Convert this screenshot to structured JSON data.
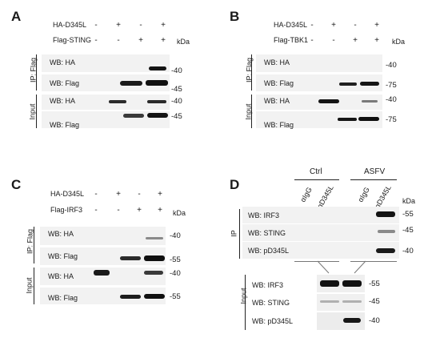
{
  "panels": {
    "A": {
      "label": "A",
      "rows": [
        {
          "label": "HA-D345L",
          "signs": [
            "-",
            "+",
            "-",
            "+"
          ]
        },
        {
          "label": "Flag-STING",
          "signs": [
            "-",
            "-",
            "+",
            "+"
          ]
        }
      ],
      "kda": "kDa",
      "group_ip": "IP: Flag",
      "group_input": "Input",
      "blots": [
        {
          "wb": "WB: HA",
          "mw": "-40"
        },
        {
          "wb": "WB: Flag",
          "mw": "-45"
        },
        {
          "wb": "WB: HA",
          "mw": "-40"
        },
        {
          "wb": "WB: Flag",
          "mw": "-45"
        }
      ]
    },
    "B": {
      "label": "B",
      "rows": [
        {
          "label": "HA-D345L",
          "signs": [
            "-",
            "+",
            "-",
            "+"
          ]
        },
        {
          "label": "Flag-TBK1",
          "signs": [
            "-",
            "-",
            "+",
            "+"
          ]
        }
      ],
      "kda": "kDa",
      "group_ip": "IP: Flag",
      "group_input": "Input",
      "blots": [
        {
          "wb": "WB: HA",
          "mw": "-40"
        },
        {
          "wb": "WB: Flag",
          "mw": "-75"
        },
        {
          "wb": "WB: HA",
          "mw": "-40"
        },
        {
          "wb": "WB: Flag",
          "mw": "-75"
        }
      ]
    },
    "C": {
      "label": "C",
      "rows": [
        {
          "label": "HA-D345L",
          "signs": [
            "-",
            "+",
            "-",
            "+"
          ]
        },
        {
          "label": "Flag-IRF3",
          "signs": [
            "-",
            "-",
            "+",
            "+"
          ]
        }
      ],
      "kda": "kDa",
      "group_ip": "IP: Flag",
      "group_input": "Input",
      "blots": [
        {
          "wb": "WB: HA",
          "mw": "-40"
        },
        {
          "wb": "WB: Flag",
          "mw": "-55"
        },
        {
          "wb": "WB: HA",
          "mw": "-40"
        },
        {
          "wb": "WB: Flag",
          "mw": "-55"
        }
      ]
    },
    "D": {
      "label": "D",
      "groups": [
        "Ctrl",
        "ASFV"
      ],
      "lanes": [
        "αIgG",
        "αD345L",
        "αIgG",
        "αD345L"
      ],
      "kda": "kDa",
      "group_ip": "IP",
      "group_input": "Input",
      "ip_blots": [
        {
          "wb": "WB: IRF3",
          "mw": "-55"
        },
        {
          "wb": "WB: STING",
          "mw": "-45"
        },
        {
          "wb": "WB: pD345L",
          "mw": "-40"
        }
      ],
      "input_blots": [
        {
          "wb": "WB: IRF3",
          "mw": "-55"
        },
        {
          "wb": "WB: STING",
          "mw": "-45"
        },
        {
          "wb": "WB: pD345L",
          "mw": "-40"
        }
      ]
    }
  }
}
